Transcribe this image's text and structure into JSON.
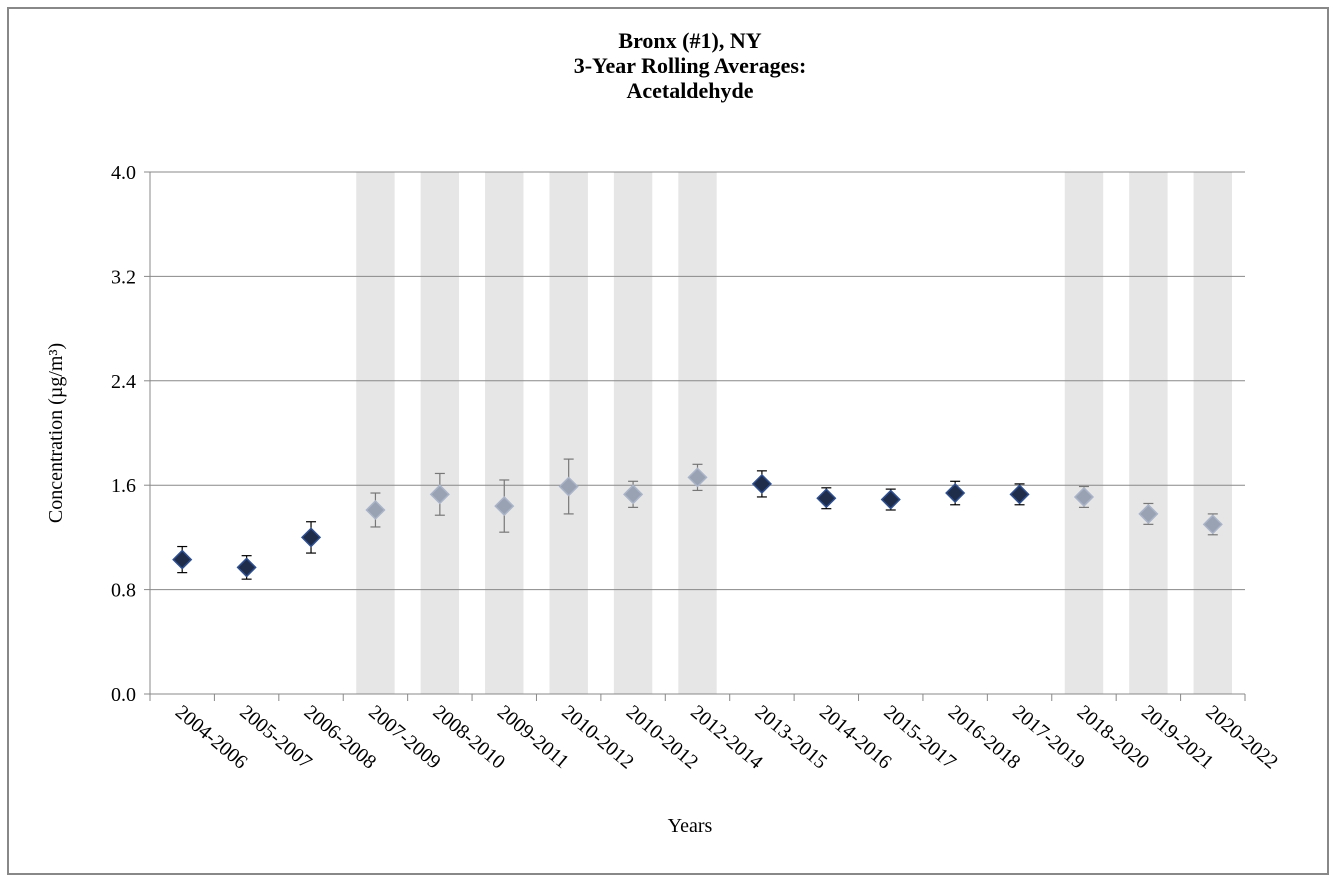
{
  "chart_data": {
    "type": "errorpoint",
    "title": [
      "Bronx (#1), NY",
      "3-Year Rolling Averages:",
      "Acetaldehyde"
    ],
    "x_label": "Years",
    "y_label": "Concentration (µg/m³)",
    "categories": [
      "2004-2006",
      "2005-2007",
      "2006-2008",
      "2007-2009",
      "2008-2010",
      "2009-2011",
      "2010-2012",
      "2010-2012",
      "2012-2014",
      "2013-2015",
      "2014-2016",
      "2015-2017",
      "2016-2018",
      "2017-2019",
      "2018-2020",
      "2019-2021",
      "2020-2022"
    ],
    "values": [
      1.03,
      0.97,
      1.2,
      1.41,
      1.53,
      1.44,
      1.59,
      1.53,
      1.66,
      1.61,
      1.5,
      1.49,
      1.54,
      1.53,
      1.51,
      1.38,
      1.3
    ],
    "errors": [
      0.1,
      0.09,
      0.12,
      0.13,
      0.16,
      0.2,
      0.21,
      0.1,
      0.1,
      0.1,
      0.08,
      0.08,
      0.09,
      0.08,
      0.08,
      0.08,
      0.08
    ],
    "shaded": [
      false,
      false,
      false,
      true,
      true,
      true,
      true,
      true,
      true,
      false,
      false,
      false,
      false,
      false,
      true,
      true,
      true
    ],
    "color": "#1f2d4a",
    "shaded_color": "#98a2b3",
    "band_color": "#e6e6e6",
    "ylim": [
      0,
      4
    ],
    "yticks": [
      {
        "value": 0,
        "label": "0.0"
      },
      0.8,
      1.6,
      2.4,
      3.2,
      {
        "value": 4,
        "label": "4.0"
      }
    ],
    "grid": true
  }
}
